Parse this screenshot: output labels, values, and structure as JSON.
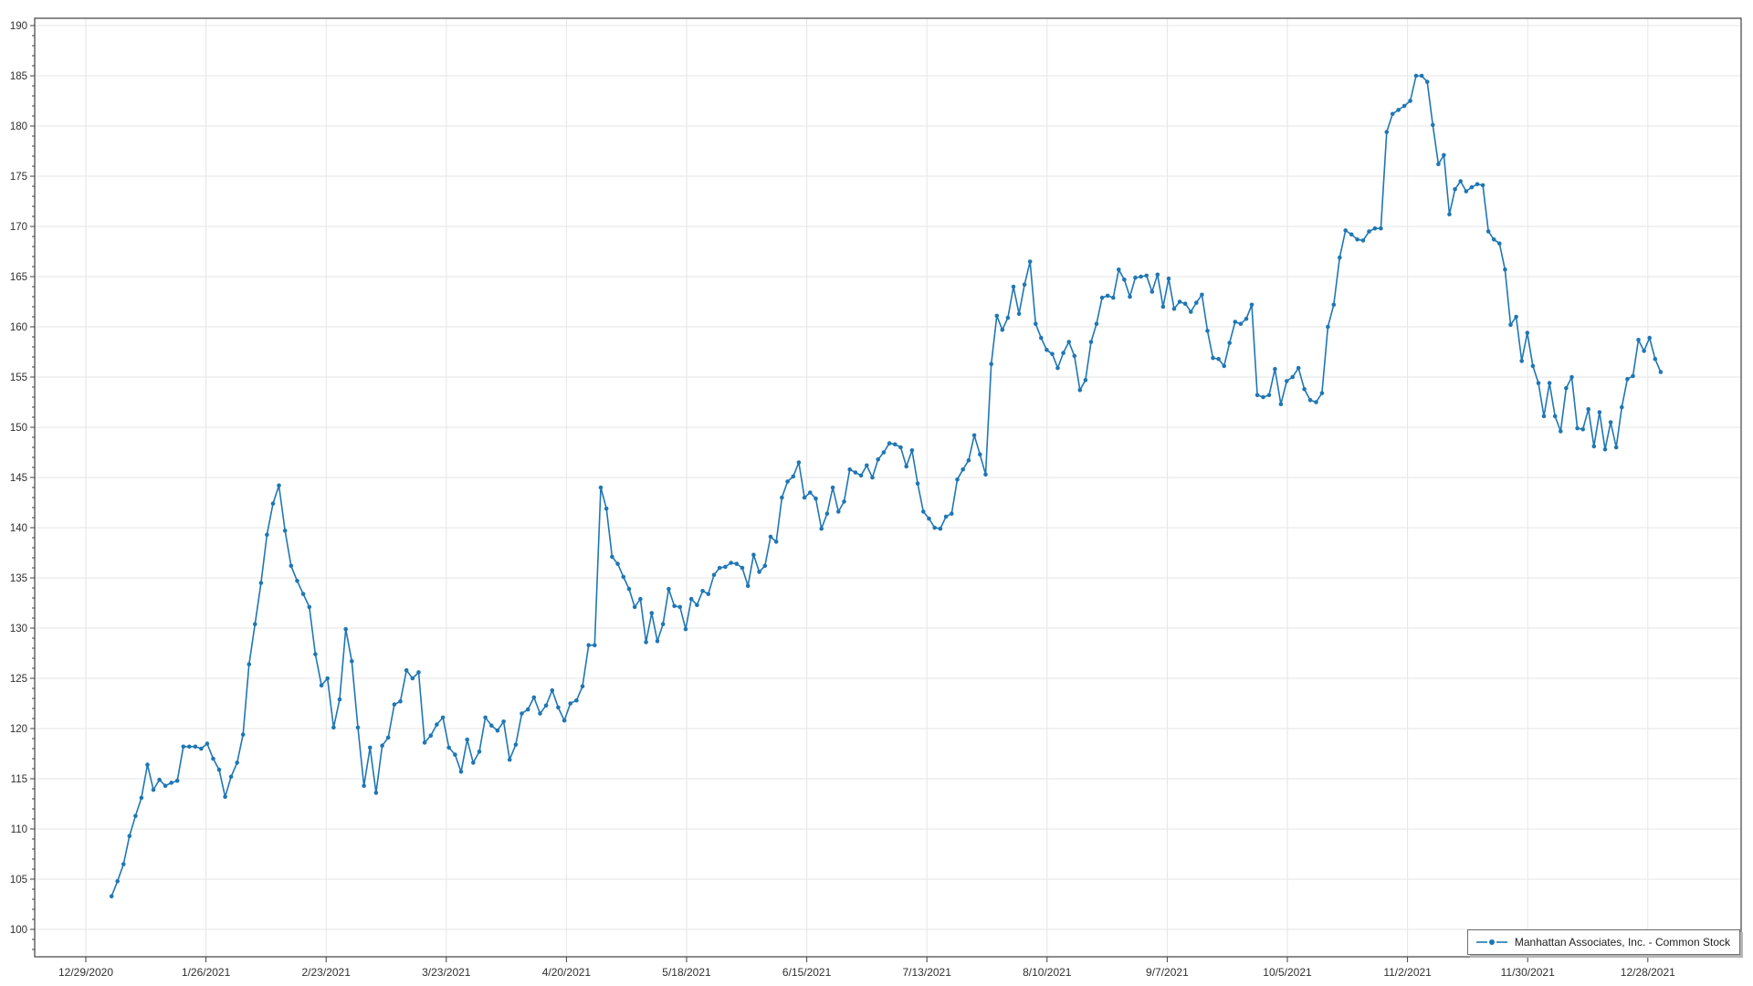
{
  "chart_data": {
    "type": "line",
    "title": "",
    "series": [
      {
        "name": "Manhattan Associates, Inc. - Common Stock",
        "color": "#1f77b4",
        "marker": "circle",
        "values": [
          103.3,
          104.8,
          106.5,
          109.3,
          111.3,
          113.1,
          116.4,
          113.9,
          114.9,
          114.3,
          114.6,
          114.8,
          118.2,
          118.2,
          118.2,
          118.0,
          118.5,
          117.0,
          115.9,
          113.2,
          115.2,
          116.6,
          119.4,
          126.4,
          130.4,
          134.5,
          139.3,
          142.4,
          144.2,
          139.7,
          136.2,
          134.7,
          133.4,
          132.1,
          127.4,
          124.3,
          125.0,
          120.1,
          122.9,
          129.9,
          126.7,
          120.1,
          114.3,
          118.1,
          113.6,
          118.3,
          119.1,
          122.4,
          122.7,
          125.8,
          125.0,
          125.6,
          118.6,
          119.3,
          120.4,
          121.1,
          118.1,
          117.4,
          115.7,
          118.9,
          116.6,
          117.7,
          121.1,
          120.3,
          119.8,
          120.7,
          116.9,
          118.4,
          121.5,
          121.9,
          123.1,
          121.5,
          122.3,
          123.8,
          122.1,
          120.8,
          122.5,
          122.8,
          124.2,
          128.3,
          128.3,
          144.0,
          141.9,
          137.1,
          136.4,
          135.1,
          133.9,
          132.1,
          132.9,
          128.6,
          131.5,
          128.7,
          130.4,
          133.9,
          132.2,
          132.1,
          129.9,
          132.9,
          132.3,
          133.7,
          133.4,
          135.3,
          136.0,
          136.1,
          136.5,
          136.4,
          136.0,
          134.2,
          137.3,
          135.6,
          136.2,
          139.1,
          138.6,
          143.0,
          144.6,
          145.1,
          146.5,
          143.0,
          143.5,
          142.9,
          139.9,
          141.4,
          144.0,
          141.6,
          142.6,
          145.8,
          145.5,
          145.2,
          146.2,
          145.0,
          146.8,
          147.5,
          148.4,
          148.3,
          148.0,
          146.1,
          147.7,
          144.4,
          141.6,
          140.9,
          140.0,
          139.9,
          141.1,
          141.4,
          144.8,
          145.8,
          146.7,
          149.2,
          147.3,
          145.3,
          156.3,
          161.1,
          159.7,
          160.9,
          164.0,
          161.3,
          164.2,
          166.5,
          160.3,
          158.9,
          157.7,
          157.3,
          155.9,
          157.4,
          158.5,
          157.1,
          153.7,
          154.7,
          158.5,
          160.3,
          162.9,
          163.1,
          162.9,
          165.7,
          164.7,
          163.0,
          164.9,
          165.0,
          165.1,
          163.5,
          165.2,
          162.0,
          164.8,
          161.8,
          162.5,
          162.3,
          161.5,
          162.4,
          163.2,
          159.6,
          156.9,
          156.8,
          156.1,
          158.4,
          160.5,
          160.3,
          160.8,
          162.2,
          153.2,
          153.0,
          153.2,
          155.8,
          152.3,
          154.6,
          155.0,
          155.9,
          153.8,
          152.7,
          152.5,
          153.4,
          160.0,
          162.2,
          166.9,
          169.6,
          169.2,
          168.7,
          168.6,
          169.5,
          169.8,
          169.8,
          179.4,
          181.2,
          181.6,
          182.0,
          182.5,
          185.0,
          185.0,
          184.4,
          180.1,
          176.2,
          177.1,
          171.2,
          173.7,
          174.5,
          173.5,
          173.9,
          174.2,
          174.1,
          169.5,
          168.7,
          168.3,
          165.7,
          160.2,
          161.0,
          156.6,
          159.4,
          156.1,
          154.4,
          151.1,
          154.4,
          151.1,
          149.6,
          153.9,
          155.0,
          149.9,
          149.8,
          151.8,
          148.1,
          151.5,
          147.8,
          150.5,
          148.0,
          152.0,
          154.8,
          155.1,
          158.7,
          157.6,
          158.9,
          156.8,
          155.5
        ]
      }
    ],
    "x": {
      "tick_labels": [
        "12/29/2020",
        "1/26/2021",
        "2/23/2021",
        "3/23/2021",
        "4/20/2021",
        "5/18/2021",
        "6/15/2021",
        "7/13/2021",
        "8/10/2021",
        "9/7/2021",
        "10/5/2021",
        "11/2/2021",
        "11/30/2021",
        "12/28/2021"
      ],
      "tick_interval_days": 28,
      "axis_total_days": 367,
      "point_day_anchors": [
        [
          0,
          6
        ],
        [
          28,
          45
        ],
        [
          81,
          120
        ],
        [
          150,
          211
        ],
        [
          198,
          273
        ],
        [
          225,
          310
        ],
        [
          269,
          367
        ]
      ]
    },
    "y": {
      "tick_labels": [
        "100",
        "105",
        "110",
        "115",
        "120",
        "125",
        "130",
        "135",
        "140",
        "145",
        "150",
        "155",
        "160",
        "165",
        "170",
        "175",
        "180",
        "185",
        "190"
      ],
      "tick_min": 100,
      "tick_max": 190,
      "tick_step": 5,
      "minor_step": 1,
      "ylim": [
        97.27,
        190.73
      ]
    },
    "grid": true,
    "legend_position": "bottom-right"
  },
  "legend": {
    "label": "Manhattan Associates, Inc. - Common Stock"
  },
  "colors": {
    "line": "#1f77b4",
    "grid": "#e6e6e6",
    "axis": "#404040",
    "tick_label": "#303030",
    "background": "#ffffff",
    "legend_border": "#6e6e6e",
    "legend_shadow": "#b5b5b5"
  }
}
